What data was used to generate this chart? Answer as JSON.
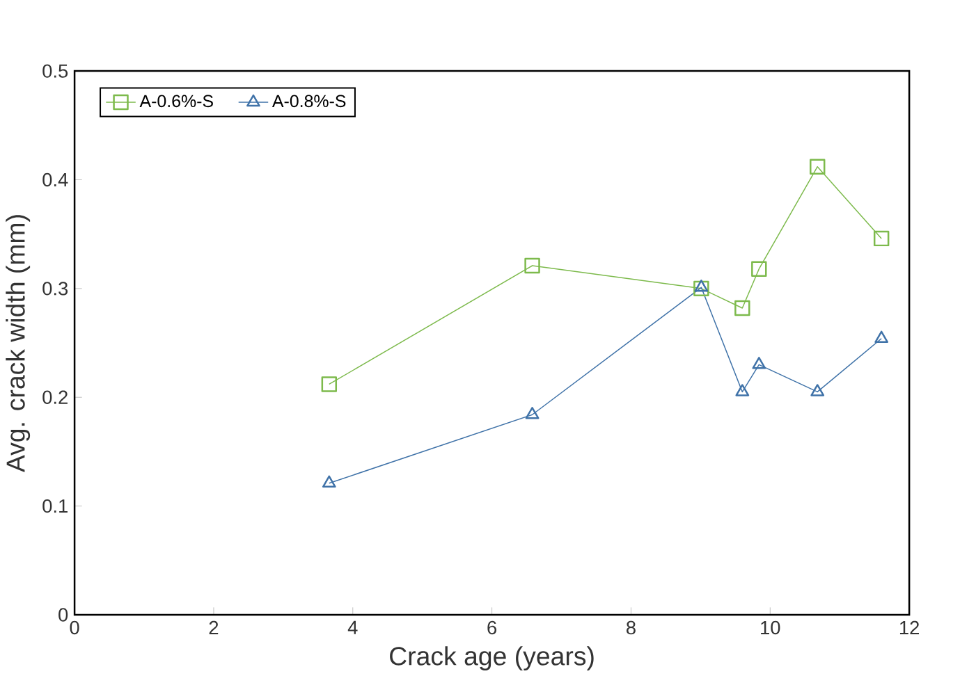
{
  "chart_data": {
    "type": "line",
    "xlabel": "Crack age (years)",
    "ylabel": "Avg. crack width (mm)",
    "xlim": [
      0,
      12
    ],
    "xticks": [
      0,
      2,
      4,
      6,
      8,
      10,
      12
    ],
    "ylim": [
      0,
      0.5
    ],
    "yticks": [
      0,
      0.1,
      0.2,
      0.3,
      0.4,
      0.5
    ],
    "grid": false,
    "legend": "top left",
    "series": [
      {
        "name": "A-0.6%-S",
        "color": "#7dba4c",
        "marker": "square",
        "x": [
          3.66,
          6.58,
          9.01,
          9.6,
          9.84,
          10.68,
          11.6
        ],
        "values": [
          0.212,
          0.321,
          0.3,
          0.282,
          0.318,
          0.412,
          0.346
        ]
      },
      {
        "name": "A-0.8%-S",
        "color": "#3f72a8",
        "marker": "triangle",
        "x": [
          3.66,
          6.58,
          9.01,
          9.6,
          9.84,
          10.68,
          11.6
        ],
        "values": [
          0.121,
          0.184,
          0.301,
          0.205,
          0.23,
          0.205,
          0.254
        ]
      }
    ]
  }
}
